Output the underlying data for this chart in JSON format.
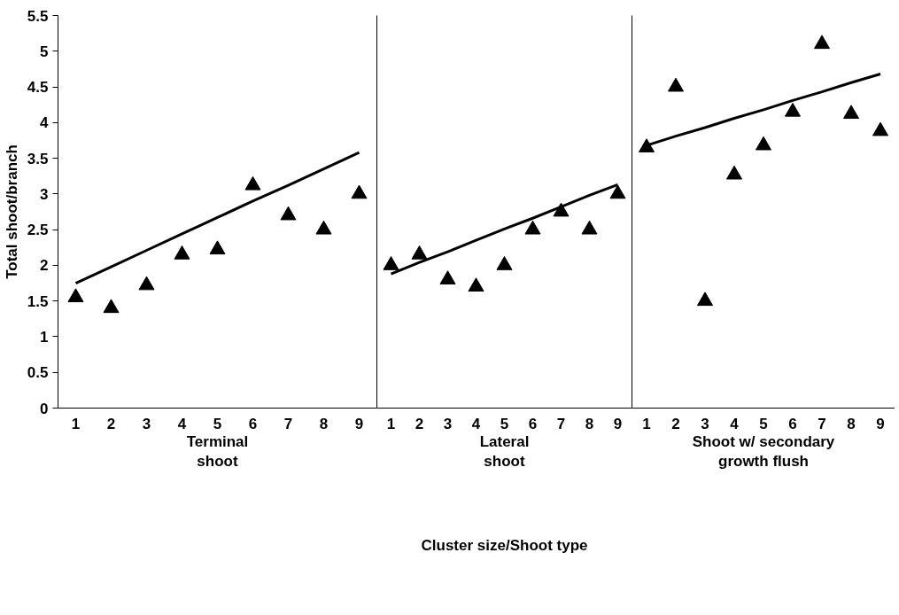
{
  "chart_data": [
    {
      "type": "scatter",
      "xlabel": "Terminal\nshoot",
      "ylabel": "Total shoot/branch",
      "categories": [
        "1",
        "2",
        "3",
        "4",
        "5",
        "6",
        "7",
        "8",
        "9"
      ],
      "ylim": [
        0,
        5.5
      ],
      "yticks": [
        0,
        0.5,
        1,
        1.5,
        2,
        2.5,
        3,
        3.5,
        4,
        4.5,
        5,
        5.5
      ],
      "grid": false,
      "series": [
        {
          "marker": "triangle",
          "color": "#000000",
          "values": [
            1.55,
            1.4,
            1.72,
            2.15,
            2.22,
            3.12,
            2.7,
            2.5,
            3.0
          ]
        },
        {
          "type": "line",
          "color": "#000000",
          "values": [
            1.75,
            1.98,
            2.21,
            2.44,
            2.67,
            2.9,
            3.12,
            3.35,
            3.58
          ]
        }
      ]
    },
    {
      "type": "scatter",
      "xlabel": "Lateral\nshoot",
      "categories": [
        "1",
        "2",
        "3",
        "4",
        "5",
        "6",
        "7",
        "8",
        "9"
      ],
      "ylim": [
        0,
        5.5
      ],
      "yticks": [
        0,
        0.5,
        1,
        1.5,
        2,
        2.5,
        3,
        3.5,
        4,
        4.5,
        5,
        5.5
      ],
      "tick_labels": "x",
      "grid": false,
      "annotations": [
        "Cluster size/Shoot type"
      ],
      "series": [
        {
          "marker": "triangle",
          "color": "#000000",
          "values": [
            2.0,
            2.15,
            1.8,
            1.7,
            2.0,
            2.5,
            2.75,
            2.5,
            3.0
          ]
        },
        {
          "type": "line",
          "color": "#000000",
          "values": [
            1.88,
            2.04,
            2.19,
            2.35,
            2.51,
            2.66,
            2.82,
            2.98,
            3.13
          ]
        }
      ]
    },
    {
      "type": "scatter",
      "xlabel": "Shoot w/ secondary\ngrowth flush",
      "categories": [
        "1",
        "2",
        "3",
        "4",
        "5",
        "6",
        "7",
        "8",
        "9"
      ],
      "ylim": [
        0,
        5.5
      ],
      "yticks": [
        0,
        0.5,
        1,
        1.5,
        2,
        2.5,
        3,
        3.5,
        4,
        4.5,
        5,
        5.5
      ],
      "tick_labels": "x",
      "grid": false,
      "series": [
        {
          "marker": "triangle",
          "color": "#000000",
          "values": [
            3.65,
            4.5,
            1.5,
            3.27,
            3.68,
            4.15,
            5.1,
            4.12,
            3.88
          ]
        },
        {
          "type": "line",
          "color": "#000000",
          "values": [
            3.68,
            3.81,
            3.93,
            4.06,
            4.18,
            4.31,
            4.43,
            4.56,
            4.68
          ]
        }
      ]
    }
  ]
}
